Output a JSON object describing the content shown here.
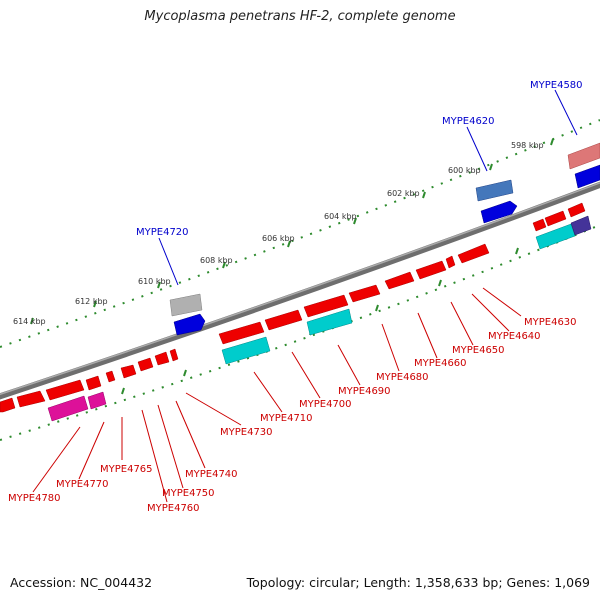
{
  "title": "Mycoplasma penetrans HF-2, complete genome",
  "footer": {
    "accession": "Accession: NC_004432",
    "topology": "Topology: circular; Length: 1,358,633 bp; Genes: 1,069"
  },
  "colors": {
    "backbone": "#777777",
    "tick": "#2e8b2e",
    "label_upper": "#0000cc",
    "label_lower": "#cc0000",
    "gene_red": "#ee0000",
    "gene_cyan": "#00cccc",
    "gene_magenta": "#dd1199",
    "gene_blue": "#0000dd",
    "gene_grey": "#b0b0b0",
    "gene_steelblue": "#4477bb",
    "gene_pink": "#dd7777",
    "gene_slate": "#443399"
  },
  "scale_labels": [
    "598 kbp",
    "600 kbp",
    "602 kbp",
    "604 kbp",
    "606 kbp",
    "608 kbp",
    "610 kbp",
    "612 kbp",
    "614 kbp"
  ],
  "upper_labels": [
    "MYPE4580",
    "MYPE4620",
    "MYPE4720"
  ],
  "lower_labels": [
    "MYPE4630",
    "MYPE4640",
    "MYPE4650",
    "MYPE4660",
    "MYPE4680",
    "MYPE4690",
    "MYPE4700",
    "MYPE4710",
    "MYPE4730",
    "MYPE4740",
    "MYPE4750",
    "MYPE4760",
    "MYPE4765",
    "MYPE4770",
    "MYPE4780"
  ]
}
